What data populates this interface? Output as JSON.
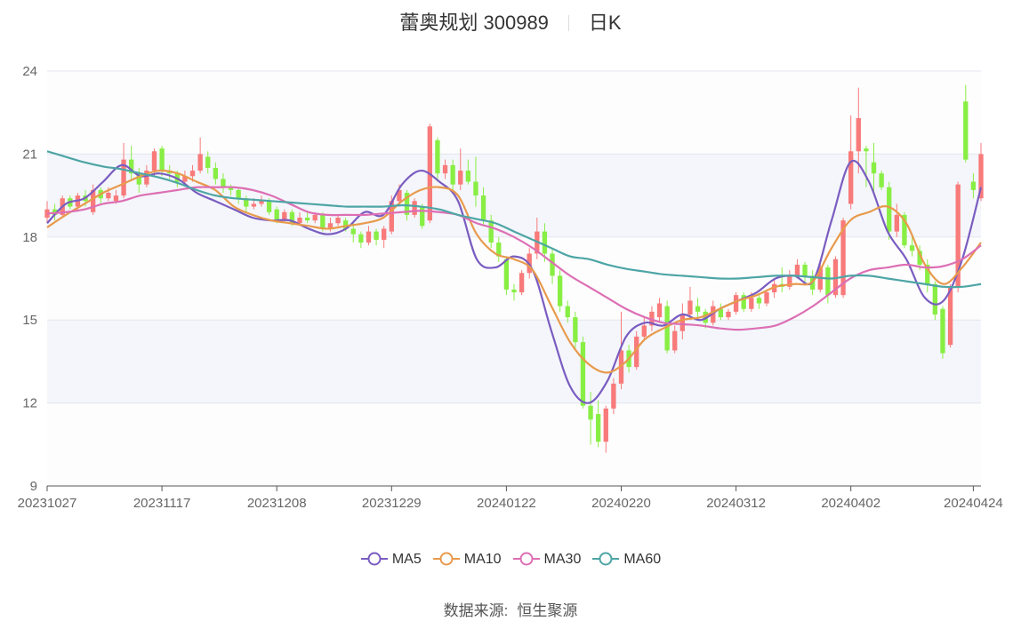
{
  "header": {
    "stock_name": "蕾奥规划 300989",
    "period": "日K"
  },
  "source": {
    "label": "数据来源:",
    "value": "恒生聚源"
  },
  "chart_data": {
    "type": "candlestick",
    "title": "蕾奥规划 300989",
    "subtitle": "日K",
    "ylim": [
      9,
      24
    ],
    "yticks": [
      9,
      12,
      15,
      18,
      21,
      24
    ],
    "xticks": [
      "20231027",
      "20231117",
      "20231208",
      "20231229",
      "20240122",
      "20240220",
      "20240312",
      "20240402",
      "20240424"
    ],
    "legend": [
      "MA5",
      "MA10",
      "MA30",
      "MA60"
    ],
    "colors": {
      "up": "#f87a7a",
      "down": "#88ee44",
      "MA5": "#7a5cc0",
      "MA10": "#e89a4c",
      "MA30": "#dd6fb4",
      "MA60": "#4ea5a5"
    },
    "grid": "horizontal",
    "candles": [
      [
        "20231027",
        18.7,
        19.0,
        18.5,
        19.3
      ],
      [
        "20231030",
        19.0,
        18.8,
        18.6,
        19.2
      ],
      [
        "20231031",
        18.8,
        19.4,
        18.7,
        19.5
      ],
      [
        "20231101",
        19.4,
        19.1,
        19.0,
        19.5
      ],
      [
        "20231102",
        19.1,
        19.5,
        19.0,
        19.6
      ],
      [
        "20231103",
        19.5,
        19.3,
        19.1,
        19.7
      ],
      [
        "20231106",
        18.9,
        19.7,
        18.8,
        19.9
      ],
      [
        "20231107",
        19.7,
        19.4,
        19.2,
        19.8
      ],
      [
        "20231108",
        19.4,
        19.6,
        19.3,
        19.8
      ],
      [
        "20231109",
        19.3,
        19.5,
        19.2,
        19.7
      ],
      [
        "20231110",
        19.5,
        20.8,
        19.4,
        21.4
      ],
      [
        "20231113",
        20.8,
        20.3,
        20.1,
        21.3
      ],
      [
        "20231114",
        20.3,
        19.9,
        19.6,
        20.5
      ],
      [
        "20231115",
        19.9,
        20.4,
        19.8,
        20.6
      ],
      [
        "20231116",
        20.4,
        21.1,
        20.2,
        21.2
      ],
      [
        "20231117",
        21.2,
        20.4,
        20.2,
        21.3
      ],
      [
        "20231120",
        20.4,
        20.3,
        20.1,
        20.6
      ],
      [
        "20231121",
        20.3,
        20.0,
        19.8,
        20.4
      ],
      [
        "20231122",
        20.0,
        20.2,
        19.9,
        20.4
      ],
      [
        "20231123",
        20.2,
        20.4,
        20.0,
        20.6
      ],
      [
        "20231124",
        20.4,
        21.0,
        20.3,
        21.6
      ],
      [
        "20231127",
        20.9,
        20.5,
        20.3,
        21.1
      ],
      [
        "20231128",
        20.5,
        20.1,
        19.9,
        20.7
      ],
      [
        "20231129",
        20.1,
        19.8,
        19.6,
        20.3
      ],
      [
        "20231130",
        19.8,
        19.7,
        19.5,
        19.9
      ],
      [
        "20231201",
        19.7,
        19.4,
        19.2,
        19.8
      ],
      [
        "20231204",
        19.4,
        19.1,
        18.9,
        19.5
      ],
      [
        "20231205",
        19.1,
        19.2,
        19.0,
        19.4
      ],
      [
        "20231206",
        19.2,
        19.3,
        19.1,
        19.5
      ],
      [
        "20231207",
        19.3,
        18.9,
        18.8,
        19.4
      ],
      [
        "20231208",
        19.0,
        18.6,
        18.5,
        19.1
      ],
      [
        "20231211",
        18.6,
        18.9,
        18.5,
        19.0
      ],
      [
        "20231212",
        18.9,
        18.5,
        18.4,
        19.0
      ],
      [
        "20231213",
        18.5,
        18.7,
        18.4,
        18.9
      ],
      [
        "20231214",
        18.7,
        18.6,
        18.5,
        18.9
      ],
      [
        "20231215",
        18.6,
        18.8,
        18.5,
        18.9
      ],
      [
        "20231218",
        18.8,
        18.3,
        18.2,
        18.9
      ],
      [
        "20231219",
        18.3,
        18.5,
        18.2,
        18.7
      ],
      [
        "20231220",
        18.5,
        18.7,
        18.4,
        18.8
      ],
      [
        "20231221",
        18.6,
        18.3,
        18.2,
        18.7
      ],
      [
        "20231222",
        18.3,
        18.1,
        17.8,
        18.5
      ],
      [
        "20231225",
        18.1,
        17.8,
        17.6,
        18.2
      ],
      [
        "20231226",
        17.8,
        18.2,
        17.7,
        18.4
      ],
      [
        "20231227",
        18.2,
        17.9,
        17.7,
        18.3
      ],
      [
        "20231228",
        17.9,
        18.3,
        17.6,
        18.4
      ],
      [
        "20231229",
        18.2,
        19.3,
        18.1,
        19.5
      ],
      [
        "20240102",
        19.3,
        19.7,
        19.1,
        19.9
      ],
      [
        "20240103",
        19.6,
        18.8,
        18.6,
        19.7
      ],
      [
        "20240104",
        18.8,
        19.3,
        18.7,
        19.4
      ],
      [
        "20240105",
        19.1,
        18.4,
        18.3,
        19.2
      ],
      [
        "20240108",
        18.6,
        22.0,
        18.5,
        22.1
      ],
      [
        "20240109",
        21.5,
        20.3,
        20.0,
        21.6
      ],
      [
        "20240110",
        20.3,
        20.6,
        20.1,
        20.8
      ],
      [
        "20240111",
        20.6,
        19.9,
        19.6,
        20.8
      ],
      [
        "20240112",
        19.9,
        20.4,
        19.7,
        21.2
      ],
      [
        "20240115",
        20.4,
        20.0,
        19.9,
        20.8
      ],
      [
        "20240116",
        20.0,
        19.5,
        19.1,
        20.9
      ],
      [
        "20240117",
        19.5,
        18.6,
        18.4,
        19.8
      ],
      [
        "20240118",
        18.6,
        17.8,
        17.6,
        18.8
      ],
      [
        "20240119",
        17.8,
        17.3,
        17.1,
        18.0
      ],
      [
        "20240122",
        17.2,
        16.1,
        15.9,
        17.3
      ],
      [
        "20240123",
        16.1,
        16.0,
        15.7,
        16.3
      ],
      [
        "20240124",
        16.0,
        16.7,
        15.9,
        16.8
      ],
      [
        "20240125",
        16.7,
        17.4,
        16.5,
        17.6
      ],
      [
        "20240126",
        17.4,
        18.2,
        17.2,
        18.7
      ],
      [
        "20240129",
        18.2,
        17.4,
        17.1,
        18.5
      ],
      [
        "20240130",
        17.4,
        16.6,
        16.3,
        17.6
      ],
      [
        "20240131",
        16.6,
        15.5,
        15.3,
        16.8
      ],
      [
        "20240201",
        15.5,
        15.1,
        14.9,
        15.7
      ],
      [
        "20240202",
        15.1,
        14.2,
        13.9,
        15.3
      ],
      [
        "20240205",
        14.2,
        11.9,
        11.8,
        14.4
      ],
      [
        "20240206",
        11.9,
        11.4,
        10.5,
        12.4
      ],
      [
        "20240207",
        11.6,
        10.6,
        10.4,
        12.1
      ],
      [
        "20240208",
        10.6,
        11.8,
        10.2,
        11.9
      ],
      [
        "20240219",
        11.8,
        12.7,
        11.6,
        12.9
      ],
      [
        "20240220",
        12.7,
        13.9,
        12.5,
        15.3
      ],
      [
        "20240221",
        13.9,
        13.3,
        13.1,
        14.1
      ],
      [
        "20240222",
        13.3,
        14.4,
        13.2,
        14.6
      ],
      [
        "20240223",
        14.4,
        14.8,
        14.3,
        15.1
      ],
      [
        "20240226",
        14.8,
        15.3,
        14.6,
        15.5
      ],
      [
        "20240227",
        15.1,
        15.6,
        14.9,
        15.8
      ],
      [
        "20240228",
        15.5,
        13.9,
        13.8,
        15.7
      ],
      [
        "20240229",
        13.9,
        14.6,
        13.8,
        14.8
      ],
      [
        "20240301",
        14.6,
        15.2,
        14.3,
        15.6
      ],
      [
        "20240304",
        15.2,
        15.7,
        15.0,
        16.2
      ],
      [
        "20240305",
        15.5,
        15.3,
        15.0,
        15.8
      ],
      [
        "20240306",
        15.3,
        14.9,
        14.7,
        15.4
      ],
      [
        "20240307",
        14.9,
        15.5,
        14.8,
        15.7
      ],
      [
        "20240308",
        15.4,
        15.1,
        15.0,
        15.6
      ],
      [
        "20240311",
        15.1,
        15.3,
        15.0,
        15.4
      ],
      [
        "20240312",
        15.3,
        15.9,
        15.2,
        16.0
      ],
      [
        "20240313",
        15.9,
        15.4,
        15.3,
        16.0
      ],
      [
        "20240314",
        15.4,
        15.8,
        15.3,
        16.0
      ],
      [
        "20240315",
        15.8,
        15.6,
        15.4,
        15.9
      ],
      [
        "20240318",
        15.6,
        16.0,
        15.5,
        16.1
      ],
      [
        "20240319",
        16.0,
        16.3,
        15.8,
        16.5
      ],
      [
        "20240320",
        16.3,
        16.2,
        16.0,
        16.9
      ],
      [
        "20240321",
        16.2,
        16.6,
        16.1,
        16.8
      ],
      [
        "20240322",
        16.6,
        17.0,
        16.5,
        17.2
      ],
      [
        "20240325",
        17.0,
        16.6,
        16.3,
        17.1
      ],
      [
        "20240326",
        16.6,
        16.1,
        15.9,
        16.8
      ],
      [
        "20240327",
        16.1,
        16.9,
        16.0,
        17.2
      ],
      [
        "20240328",
        16.9,
        15.9,
        15.6,
        17.0
      ],
      [
        "20240329",
        15.9,
        17.2,
        15.8,
        17.3
      ],
      [
        "20240401",
        15.9,
        18.6,
        15.8,
        18.7
      ],
      [
        "20240402",
        19.2,
        21.1,
        19.0,
        22.4
      ],
      [
        "20240403",
        21.1,
        22.3,
        20.3,
        23.4
      ],
      [
        "20240404",
        21.2,
        21.1,
        19.8,
        21.3
      ],
      [
        "20240405",
        20.7,
        20.3,
        19.6,
        21.4
      ],
      [
        "20240408",
        20.3,
        19.8,
        19.7,
        20.4
      ],
      [
        "20240409",
        19.8,
        18.2,
        17.9,
        20.0
      ],
      [
        "20240410",
        18.2,
        18.8,
        18.0,
        19.2
      ],
      [
        "20240411",
        18.8,
        17.7,
        17.6,
        18.9
      ],
      [
        "20240412",
        17.7,
        17.5,
        17.3,
        18.0
      ],
      [
        "20240415",
        17.5,
        17.0,
        16.8,
        17.7
      ],
      [
        "20240416",
        17.0,
        16.3,
        16.0,
        17.2
      ],
      [
        "20240417",
        16.3,
        15.2,
        15.0,
        16.4
      ],
      [
        "20240418",
        15.4,
        13.8,
        13.6,
        15.5
      ],
      [
        "20240419",
        14.1,
        16.2,
        14.0,
        16.3
      ],
      [
        "20240422",
        16.2,
        19.9,
        16.0,
        20.0
      ],
      [
        "20240423",
        22.9,
        20.8,
        20.7,
        23.5
      ],
      [
        "20240424",
        20.0,
        19.7,
        19.4,
        20.3
      ],
      [
        "20240425",
        19.4,
        21.0,
        19.3,
        21.4
      ]
    ],
    "series": [
      {
        "name": "MA5",
        "values": [
          18.5,
          19.2,
          19.4,
          20.0,
          20.6,
          20.2,
          20.3,
          20.1,
          19.6,
          19.3,
          19.0,
          18.7,
          18.6,
          18.6,
          18.3,
          18.1,
          18.3,
          18.9,
          18.8,
          19.9,
          20.4,
          20.0,
          19.3,
          17.2,
          16.9,
          17.3,
          16.8,
          14.6,
          12.6,
          12.0,
          12.8,
          14.4,
          14.9,
          14.8,
          15.2,
          15.0,
          15.4,
          15.7,
          16.0,
          16.5,
          16.6,
          16.4,
          18.6,
          20.7,
          20.0,
          18.2,
          17.2,
          15.8,
          15.7,
          17.2,
          19.8
        ]
      },
      {
        "name": "MA10",
        "values": [
          18.35,
          18.8,
          19.2,
          19.6,
          19.9,
          20.2,
          20.4,
          20.3,
          20.0,
          19.7,
          19.1,
          18.8,
          18.6,
          18.5,
          18.4,
          18.3,
          18.4,
          18.5,
          18.7,
          19.3,
          19.7,
          19.8,
          19.5,
          18.1,
          17.4,
          17.2,
          16.8,
          15.5,
          14.2,
          13.4,
          13.1,
          13.5,
          14.3,
          14.7,
          15.0,
          15.1,
          15.4,
          15.7,
          15.9,
          16.2,
          16.3,
          16.4,
          17.6,
          18.6,
          18.9,
          19.1,
          18.5,
          17.0,
          16.3,
          16.9,
          17.8
        ]
      },
      {
        "name": "MA30",
        "values": [
          18.85,
          18.9,
          19.0,
          19.2,
          19.3,
          19.5,
          19.6,
          19.7,
          19.8,
          19.8,
          19.8,
          19.7,
          19.5,
          19.2,
          18.9,
          18.8,
          18.8,
          18.8,
          18.85,
          18.9,
          18.95,
          18.9,
          18.8,
          18.5,
          18.3,
          18.0,
          17.6,
          17.1,
          16.6,
          16.2,
          15.8,
          15.4,
          15.1,
          14.9,
          14.85,
          14.8,
          14.7,
          14.65,
          14.7,
          14.8,
          15.1,
          15.5,
          16.0,
          16.5,
          16.8,
          16.9,
          17.0,
          16.9,
          16.95,
          17.2,
          17.7
        ]
      },
      {
        "name": "MA60",
        "values": [
          21.1,
          20.9,
          20.7,
          20.55,
          20.45,
          20.3,
          20.15,
          19.95,
          19.7,
          19.5,
          19.4,
          19.35,
          19.3,
          19.25,
          19.2,
          19.15,
          19.1,
          19.1,
          19.1,
          19.15,
          19.1,
          19.0,
          18.8,
          18.65,
          18.5,
          18.2,
          17.9,
          17.6,
          17.3,
          17.2,
          17.0,
          16.85,
          16.75,
          16.65,
          16.6,
          16.55,
          16.5,
          16.5,
          16.55,
          16.6,
          16.6,
          16.55,
          16.5,
          16.6,
          16.6,
          16.5,
          16.4,
          16.3,
          16.2,
          16.2,
          16.3
        ]
      }
    ]
  }
}
